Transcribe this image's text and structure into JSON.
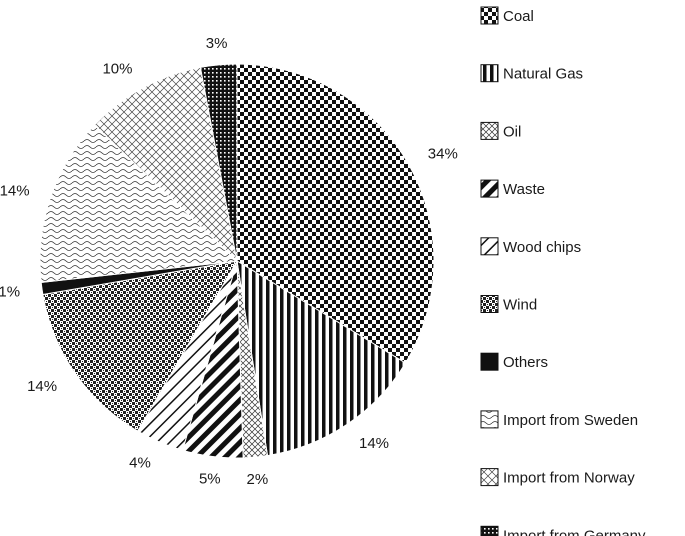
{
  "chart_data": {
    "type": "pie",
    "title": "",
    "legend_position": "right",
    "slices": [
      {
        "label": "Coal",
        "value": 34,
        "value_label": "34%",
        "pattern": "checker-fine"
      },
      {
        "label": "Natural Gas",
        "value": 14,
        "value_label": "14%",
        "pattern": "vertical-lines"
      },
      {
        "label": "Oil",
        "value": 2,
        "value_label": "2%",
        "pattern": "crosshatch-light"
      },
      {
        "label": "Waste",
        "value": 5,
        "value_label": "5%",
        "pattern": "diagonal-thick"
      },
      {
        "label": "Wood chips",
        "value": 4,
        "value_label": "4%",
        "pattern": "diagonal-thin"
      },
      {
        "label": "Wind",
        "value": 14,
        "value_label": "14%",
        "pattern": "checker-dense"
      },
      {
        "label": "Others",
        "value": 1,
        "value_label": "1%",
        "pattern": "solid"
      },
      {
        "label": "Import from Sweden",
        "value": 14,
        "value_label": "14%",
        "pattern": "wave"
      },
      {
        "label": "Import from Norway",
        "value": 10,
        "value_label": "10%",
        "pattern": "crosshatch-diamond"
      },
      {
        "label": "Import from Germany",
        "value": 3,
        "value_label": "3%",
        "pattern": "grid-dense"
      }
    ]
  }
}
